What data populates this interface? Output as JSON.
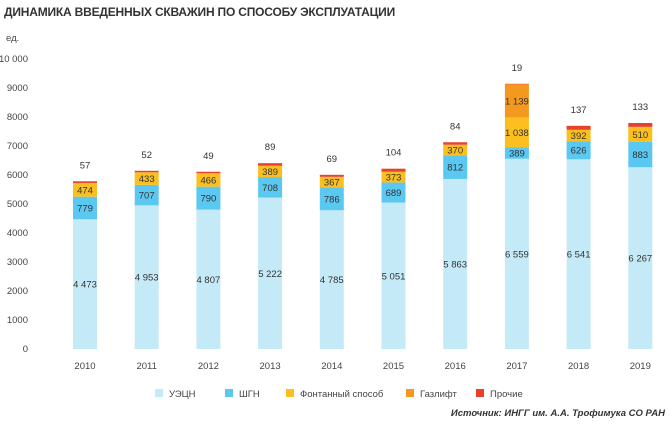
{
  "chart_data": {
    "type": "bar",
    "stacked": true,
    "title": "ДИНАМИКА ВВЕДЕННЫХ СКВАЖИН ПО СПОСОБУ ЭКСПЛУАТАЦИИ",
    "ylabel": "ед.",
    "ylim": [
      0,
      10000
    ],
    "yticks": [
      "0",
      "1000",
      "2000",
      "3000",
      "4000",
      "5000",
      "6000",
      "7000",
      "8000",
      "9000",
      "10 000"
    ],
    "categories": [
      "2010",
      "2011",
      "2012",
      "2013",
      "2014",
      "2015",
      "2016",
      "2017",
      "2018",
      "2019"
    ],
    "series": [
      {
        "name": "УЭЦН",
        "color": "#c5eaf7",
        "values": [
          4473,
          4953,
          4807,
          5222,
          4785,
          5051,
          5863,
          6559,
          6541,
          6267
        ],
        "labels": [
          "4 473",
          "4 953",
          "4 807",
          "5 222",
          "4 785",
          "5 051",
          "5 863",
          "6 559",
          "6 541",
          "6 267"
        ]
      },
      {
        "name": "ШГН",
        "color": "#5bc8f2",
        "values": [
          779,
          707,
          790,
          708,
          786,
          689,
          812,
          389,
          626,
          883
        ],
        "labels": [
          "779",
          "707",
          "790",
          "708",
          "786",
          "689",
          "812",
          "389",
          "626",
          "883"
        ]
      },
      {
        "name": "Фонтанный способ",
        "color": "#fbc020",
        "values": [
          474,
          433,
          466,
          389,
          367,
          373,
          370,
          1038,
          392,
          510
        ],
        "labels": [
          "474",
          "433",
          "466",
          "389",
          "367",
          "373",
          "370",
          "1 038",
          "392",
          "510"
        ]
      },
      {
        "name": "Газлифт",
        "color": "#f39a1e",
        "values": [
          0,
          0,
          0,
          0,
          0,
          0,
          0,
          1139,
          0,
          0
        ],
        "labels": [
          "",
          "",
          "",
          "",
          "",
          "",
          "",
          "1 139",
          "",
          ""
        ]
      },
      {
        "name": "Прочие",
        "color": "#e8402a",
        "values": [
          57,
          52,
          49,
          89,
          69,
          104,
          84,
          19,
          137,
          133
        ],
        "labels": [
          "57",
          "52",
          "49",
          "89",
          "69",
          "104",
          "84",
          "19",
          "137",
          "133"
        ]
      }
    ],
    "legend_position": "bottom",
    "grid": false
  },
  "source": "Источник: ИНГГ им. А.А. Трофимука СО РАН"
}
